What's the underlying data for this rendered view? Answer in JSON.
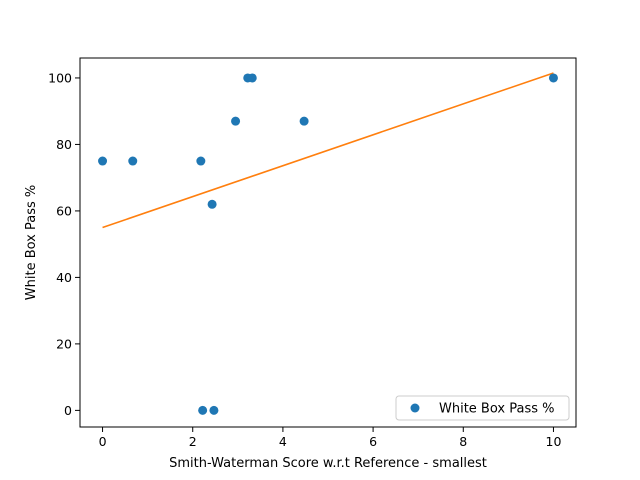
{
  "chart_data": {
    "type": "scatter",
    "title": "",
    "xlabel": "Smith-Waterman Score w.r.t Reference - smallest",
    "ylabel": "White Box Pass %",
    "xlim": [
      -0.5,
      10.5
    ],
    "ylim": [
      -5,
      106
    ],
    "xticks": [
      "0",
      "2",
      "4",
      "6",
      "8",
      "10"
    ],
    "yticks": [
      "0",
      "20",
      "40",
      "60",
      "80",
      "100"
    ],
    "grid": false,
    "legend_position": "bottom-right",
    "series": [
      {
        "name": "White Box Pass %",
        "kind": "scatter",
        "color": "#1f77b4",
        "x": [
          0.0,
          0.67,
          2.18,
          2.22,
          2.43,
          2.47,
          2.95,
          3.22,
          3.32,
          4.47,
          10.0
        ],
        "y": [
          75,
          75,
          75,
          0,
          62,
          0,
          87,
          100,
          100,
          87,
          100
        ]
      },
      {
        "kind": "line",
        "color": "#ff7f0e",
        "x": [
          0,
          10
        ],
        "y": [
          55,
          101.5
        ]
      }
    ]
  }
}
